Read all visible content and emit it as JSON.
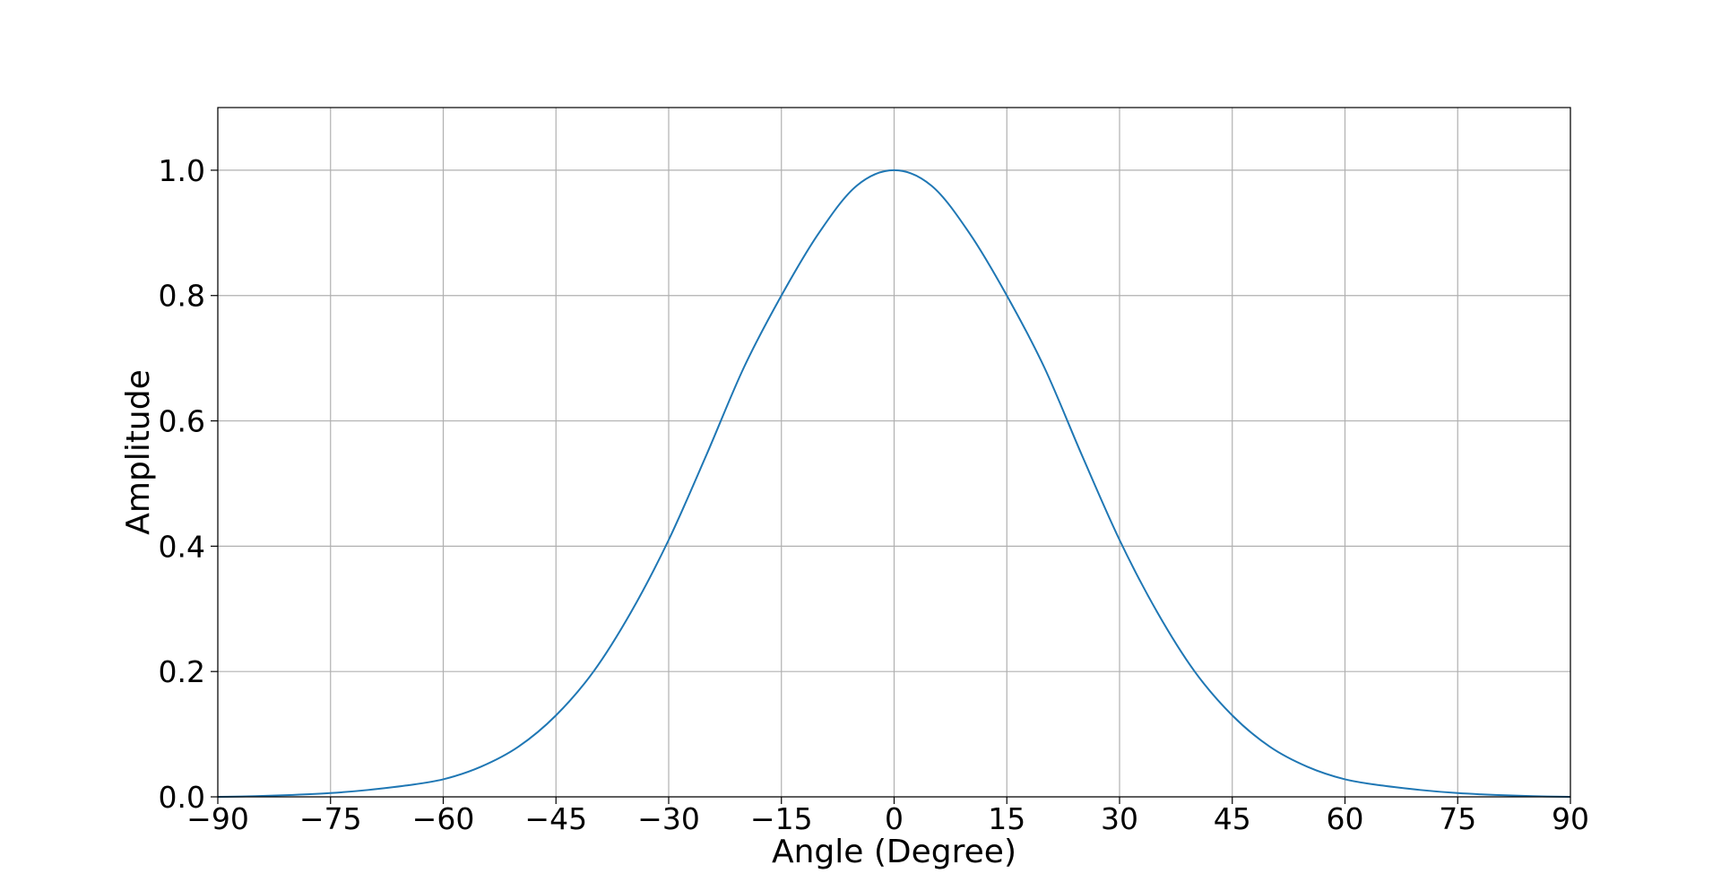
{
  "chart_data": {
    "type": "line",
    "title": "",
    "xlabel": "Angle (Degree)",
    "ylabel": "Amplitude",
    "xlim": [
      -90,
      90
    ],
    "ylim": [
      0,
      1.1
    ],
    "grid": true,
    "legend": "none",
    "xticks": [
      -90,
      -75,
      -60,
      -45,
      -30,
      -15,
      0,
      15,
      30,
      45,
      60,
      75,
      90
    ],
    "xtick_labels": [
      "−90",
      "−75",
      "−60",
      "−45",
      "−30",
      "−15",
      "0",
      "15",
      "30",
      "45",
      "60",
      "75",
      "90"
    ],
    "yticks": [
      0.0,
      0.2,
      0.4,
      0.6,
      0.8,
      1.0
    ],
    "ytick_labels": [
      "0.0",
      "0.2",
      "0.4",
      "0.6",
      "0.8",
      "1.0"
    ],
    "series": [
      {
        "color": "#1f77b4",
        "x": [
          -90,
          -85,
          -80,
          -75,
          -70,
          -65,
          -60,
          -55,
          -50,
          -45,
          -40,
          -35,
          -30,
          -25,
          -20,
          -15,
          -10,
          -5,
          0,
          5,
          10,
          15,
          20,
          25,
          30,
          35,
          40,
          45,
          50,
          55,
          60,
          65,
          70,
          75,
          80,
          85,
          90
        ],
        "y": [
          0.0,
          0.001,
          0.003,
          0.006,
          0.011,
          0.018,
          0.028,
          0.048,
          0.08,
          0.13,
          0.2,
          0.295,
          0.41,
          0.545,
          0.685,
          0.8,
          0.9,
          0.975,
          1.0,
          0.975,
          0.9,
          0.8,
          0.685,
          0.545,
          0.41,
          0.295,
          0.2,
          0.13,
          0.08,
          0.048,
          0.028,
          0.018,
          0.011,
          0.006,
          0.003,
          0.001,
          0.0
        ]
      }
    ]
  }
}
